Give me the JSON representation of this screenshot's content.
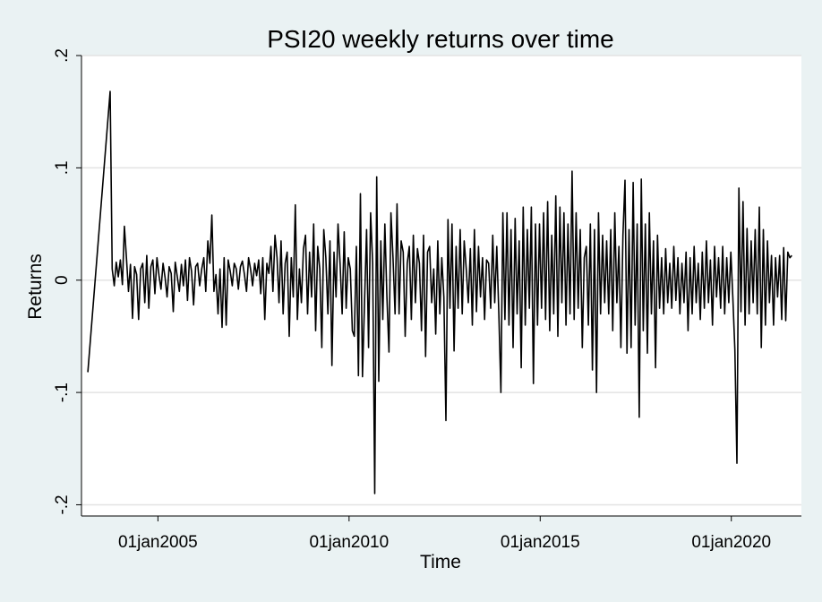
{
  "chart_data": {
    "type": "line",
    "title": "PSI20 weekly returns over time",
    "xlabel": "Time",
    "ylabel": "Returns",
    "x_ticks": [
      "01jan2005",
      "01jan2010",
      "01jan2015",
      "01jan2020"
    ],
    "x_tick_years": [
      2005,
      2010,
      2015,
      2020
    ],
    "y_ticks": [
      ".2",
      ".1",
      "0",
      "-.1",
      "-.2"
    ],
    "y_tick_values": [
      0.2,
      0.1,
      0,
      -0.1,
      -0.2
    ],
    "ylim": [
      -0.21,
      0.2
    ],
    "xlim": [
      "2003-01",
      "2021-11"
    ],
    "grid": true,
    "series": [
      {
        "color": "#000000",
        "x_start": "2003-03",
        "x_end": "2021-08",
        "values": [
          -0.082,
          0.168,
          0.01,
          -0.005,
          0.016,
          0.003,
          0.018,
          -0.004,
          0.048,
          0.02,
          -0.01,
          0.014,
          -0.034,
          0.012,
          0.005,
          -0.035,
          0.01,
          0.015,
          -0.02,
          0.022,
          -0.025,
          0.012,
          0.018,
          -0.012,
          0.02,
          0.004,
          -0.008,
          0.015,
          0.002,
          -0.015,
          0.012,
          0.006,
          -0.028,
          0.016,
          0.003,
          -0.01,
          0.014,
          -0.005,
          0.018,
          -0.018,
          0.02,
          0.008,
          -0.022,
          0.012,
          0.015,
          -0.005,
          0.01,
          0.02,
          -0.01,
          0.035,
          0.015,
          0.058,
          -0.01,
          0.005,
          -0.03,
          0.01,
          -0.042,
          0.02,
          -0.04,
          0.018,
          0.008,
          -0.005,
          0.015,
          0.01,
          -0.008,
          0.012,
          0.017,
          0.005,
          -0.01,
          0.02,
          0.01,
          -0.005,
          0.015,
          0.004,
          0.018,
          -0.012,
          0.02,
          -0.035,
          0.015,
          0.006,
          0.03,
          -0.01,
          0.04,
          0.02,
          -0.02,
          0.035,
          -0.03,
          0.015,
          0.025,
          -0.05,
          0.02,
          -0.015,
          0.067,
          -0.035,
          0.01,
          -0.02,
          0.028,
          0.04,
          -0.03,
          0.025,
          -0.015,
          0.05,
          -0.045,
          0.03,
          0.01,
          -0.06,
          0.045,
          0.02,
          -0.03,
          0.035,
          -0.076,
          0.025,
          -0.015,
          0.05,
          0.015,
          -0.03,
          0.043,
          -0.025,
          0.02,
          0.01,
          -0.045,
          -0.05,
          0.03,
          -0.085,
          0.077,
          -0.086,
          -0.02,
          0.045,
          -0.06,
          0.06,
          0.015,
          -0.19,
          0.092,
          -0.09,
          0.035,
          -0.035,
          0.05,
          -0.015,
          -0.064,
          0.06,
          0.02,
          -0.03,
          0.068,
          -0.03,
          0.035,
          0.025,
          -0.05,
          0.015,
          0.03,
          -0.035,
          0.04,
          -0.02,
          0.028,
          0.015,
          -0.045,
          0.04,
          -0.068,
          0.025,
          0.03,
          -0.02,
          0.01,
          -0.048,
          0.035,
          -0.03,
          0.02,
          -0.015,
          -0.125,
          0.054,
          -0.025,
          0.05,
          -0.063,
          0.03,
          -0.025,
          0.045,
          -0.03,
          0.035,
          0.01,
          -0.02,
          0.028,
          -0.04,
          0.045,
          -0.028,
          0.03,
          -0.015,
          0.02,
          -0.035,
          0.018,
          0.015,
          -0.025,
          0.04,
          -0.02,
          0.03,
          -0.03,
          -0.1,
          0.06,
          -0.035,
          0.06,
          -0.04,
          0.045,
          -0.06,
          0.055,
          -0.03,
          0.035,
          -0.078,
          0.065,
          -0.04,
          0.045,
          -0.025,
          0.065,
          -0.092,
          0.05,
          -0.04,
          0.05,
          -0.025,
          0.06,
          -0.035,
          0.07,
          -0.045,
          0.04,
          -0.03,
          0.075,
          -0.05,
          0.065,
          -0.02,
          0.06,
          -0.04,
          0.05,
          -0.03,
          0.097,
          -0.035,
          0.06,
          -0.025,
          0.045,
          -0.06,
          0.02,
          0.03,
          -0.04,
          0.05,
          -0.08,
          0.045,
          -0.1,
          0.06,
          -0.03,
          0.04,
          -0.02,
          0.035,
          -0.03,
          0.045,
          -0.045,
          0.06,
          -0.02,
          0.03,
          -0.06,
          0.04,
          0.089,
          -0.065,
          0.045,
          -0.06,
          0.087,
          -0.04,
          0.05,
          -0.122,
          0.09,
          -0.045,
          0.05,
          -0.065,
          0.06,
          -0.03,
          0.035,
          -0.078,
          0.04,
          -0.025,
          0.02,
          -0.03,
          0.028,
          -0.02,
          0.015,
          -0.025,
          0.03,
          -0.018,
          0.02,
          -0.03,
          0.015,
          -0.02,
          0.025,
          -0.045,
          0.02,
          -0.03,
          0.03,
          -0.02,
          0.015,
          -0.035,
          0.025,
          -0.025,
          0.035,
          -0.02,
          0.018,
          -0.04,
          0.03,
          -0.015,
          0.02,
          -0.025,
          0.03,
          -0.03,
          0.02,
          -0.02,
          0.025,
          -0.015,
          -0.062,
          -0.163,
          0.082,
          -0.028,
          0.07,
          -0.04,
          0.046,
          -0.03,
          0.035,
          -0.02,
          0.045,
          -0.03,
          0.065,
          -0.06,
          0.045,
          -0.04,
          0.035,
          -0.02,
          0.022,
          -0.04,
          0.02,
          -0.015,
          0.022,
          -0.035,
          0.029,
          -0.036,
          0.025,
          0.02,
          0.022
        ]
      }
    ]
  }
}
